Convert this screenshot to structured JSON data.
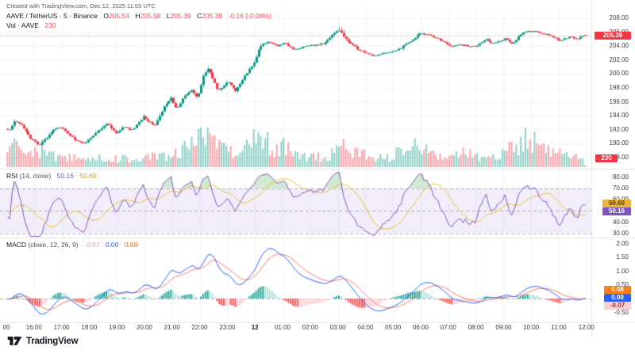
{
  "attribution": "Created with TradingView.com, Dec 12, 2025 11:55 UTC",
  "legend": {
    "symbol": "AAVE / TetherUS · 5 · Binance",
    "ohlc": [
      {
        "label": "O",
        "value": "205.54"
      },
      {
        "label": "H",
        "value": "205.58"
      },
      {
        "label": "L",
        "value": "205.39"
      },
      {
        "label": "C",
        "value": "205.39"
      }
    ],
    "change": "-0.16 (-0.08%)",
    "volume_label": "Vol · AAVE",
    "volume_value": "230"
  },
  "rsi": {
    "name": "RSI",
    "params": "(14, close)",
    "value": "50.16",
    "ma_value": "50.60"
  },
  "macd": {
    "name": "MACD",
    "params": "(close, 12, 26, 9)",
    "hist": "-0.07",
    "macd": "0.00",
    "signal": "0.08"
  },
  "badges": {
    "price": "205.39",
    "volume": "230",
    "rsi": "50.16",
    "rsi_ma": "50.60",
    "macd": "0.00",
    "signal": "0.08",
    "hist": "-0.07"
  },
  "logo": {
    "text": "TradingView"
  },
  "colors": {
    "up": "#089981",
    "down": "#f23645",
    "vol_up": "rgba(8,153,129,0.45)",
    "vol_down": "rgba(242,54,69,0.45)",
    "rsi_line": "#7e57c2",
    "rsi_ma": "#e8c231",
    "rsi_band": "rgba(126,87,194,0.10)",
    "rsi_ob_fill": "rgba(76,175,80,0.25)",
    "macd_line": "#2962ff",
    "signal_line": "#ff7766",
    "hist_grow_above": "#26a69a",
    "hist_fall_above": "#b2dfdb",
    "hist_fall_below": "#ff5252",
    "hist_grow_below": "#ffcdd2",
    "grid": "#f1f3f8",
    "separator": "#e0e3eb",
    "dashed": "rgba(120,123,134,0.55)",
    "price_line": "rgba(242,54,69,0.65)"
  },
  "chart_data": [
    {
      "type": "candlestick",
      "title": "AAVE / TetherUS · 5 · Binance",
      "interval_minutes": 5,
      "session_start": "15:00",
      "session_end": "12:00",
      "ylim": [
        188,
        208
      ],
      "y_ticks": [
        208,
        206,
        204,
        202,
        200,
        198,
        196,
        194,
        192,
        190,
        188
      ],
      "last_ohlc": {
        "o": 205.54,
        "h": 205.58,
        "l": 205.39,
        "c": 205.39
      },
      "price_path": [
        [
          0,
          192.1
        ],
        [
          0.17,
          191.9
        ],
        [
          0.33,
          193.2
        ],
        [
          0.58,
          192.6
        ],
        [
          0.92,
          190.7
        ],
        [
          1.2,
          189.7
        ],
        [
          1.45,
          190.6
        ],
        [
          1.75,
          192.0
        ],
        [
          2.0,
          192.3
        ],
        [
          2.3,
          191.2
        ],
        [
          2.6,
          190.3
        ],
        [
          2.85,
          189.9
        ],
        [
          3.2,
          191.3
        ],
        [
          3.7,
          192.8
        ],
        [
          4.0,
          191.5
        ],
        [
          4.3,
          192.3
        ],
        [
          4.6,
          191.9
        ],
        [
          5.0,
          193.8
        ],
        [
          5.25,
          192.9
        ],
        [
          5.4,
          192.5
        ],
        [
          5.8,
          195.6
        ],
        [
          6.0,
          196.5
        ],
        [
          6.2,
          194.9
        ],
        [
          6.5,
          196.9
        ],
        [
          6.75,
          197.7
        ],
        [
          6.95,
          196.4
        ],
        [
          7.15,
          199.5
        ],
        [
          7.35,
          200.7
        ],
        [
          7.7,
          197.5
        ],
        [
          8.05,
          198.9
        ],
        [
          8.35,
          197.5
        ],
        [
          8.7,
          199.9
        ],
        [
          9.0,
          201.5
        ],
        [
          9.2,
          203.9
        ],
        [
          9.5,
          204.6
        ],
        [
          9.8,
          203.9
        ],
        [
          10.1,
          204.4
        ],
        [
          10.45,
          203.4
        ],
        [
          10.9,
          203.9
        ],
        [
          11.5,
          204.3
        ],
        [
          12.05,
          206.2
        ],
        [
          12.15,
          205.9
        ],
        [
          12.4,
          204.6
        ],
        [
          12.8,
          203.4
        ],
        [
          13.3,
          202.6
        ],
        [
          13.85,
          203.0
        ],
        [
          14.3,
          203.6
        ],
        [
          14.8,
          205.1
        ],
        [
          15.05,
          205.8
        ],
        [
          15.45,
          205.3
        ],
        [
          15.85,
          204.6
        ],
        [
          16.15,
          203.9
        ],
        [
          16.5,
          204.1
        ],
        [
          17.0,
          203.9
        ],
        [
          17.4,
          204.9
        ],
        [
          17.65,
          204.3
        ],
        [
          18.1,
          205.0
        ],
        [
          18.35,
          204.2
        ],
        [
          18.75,
          206.0
        ],
        [
          19.1,
          206.1
        ],
        [
          19.4,
          205.8
        ],
        [
          19.75,
          205.4
        ],
        [
          20.1,
          204.7
        ],
        [
          20.45,
          205.3
        ],
        [
          20.7,
          204.9
        ],
        [
          20.92,
          205.4
        ]
      ],
      "x_axis": {
        "labels": [
          {
            "t": 0,
            "label": "00"
          },
          {
            "t": 1,
            "label": "16:00"
          },
          {
            "t": 2,
            "label": "17:00"
          },
          {
            "t": 3,
            "label": "18:00"
          },
          {
            "t": 4,
            "label": "19:00"
          },
          {
            "t": 5,
            "label": "20:00"
          },
          {
            "t": 6,
            "label": "21:00"
          },
          {
            "t": 7,
            "label": "22:00"
          },
          {
            "t": 8,
            "label": "23:00"
          },
          {
            "t": 9,
            "label": "12",
            "bold": true
          },
          {
            "t": 10,
            "label": "01:00"
          },
          {
            "t": 11,
            "label": "02:00"
          },
          {
            "t": 12,
            "label": "03:00"
          },
          {
            "t": 13,
            "label": "04:00"
          },
          {
            "t": 14,
            "label": "05:00"
          },
          {
            "t": 15,
            "label": "06:00"
          },
          {
            "t": 16,
            "label": "07:00"
          },
          {
            "t": 17,
            "label": "08:00"
          },
          {
            "t": 18,
            "label": "09:00"
          },
          {
            "t": 19,
            "label": "10:00"
          },
          {
            "t": 20,
            "label": "11:00"
          },
          {
            "t": 21,
            "label": "12:00"
          }
        ]
      }
    },
    {
      "type": "bar",
      "name": "Volume",
      "last_value": 230,
      "profile": [
        [
          0,
          22
        ],
        [
          0.3,
          26
        ],
        [
          0.7,
          12
        ],
        [
          1.1,
          20
        ],
        [
          1.3,
          24
        ],
        [
          1.8,
          10
        ],
        [
          2.3,
          12
        ],
        [
          2.9,
          10
        ],
        [
          3.5,
          12
        ],
        [
          4.1,
          11
        ],
        [
          4.7,
          9
        ],
        [
          5.1,
          16
        ],
        [
          5.6,
          12
        ],
        [
          6.1,
          18
        ],
        [
          6.6,
          26
        ],
        [
          7.0,
          40
        ],
        [
          7.2,
          46
        ],
        [
          7.6,
          26
        ],
        [
          8.1,
          18
        ],
        [
          8.6,
          24
        ],
        [
          9.0,
          34
        ],
        [
          9.2,
          40
        ],
        [
          9.6,
          22
        ],
        [
          10.0,
          30
        ],
        [
          10.3,
          18
        ],
        [
          10.9,
          12
        ],
        [
          11.5,
          13
        ],
        [
          12.0,
          26
        ],
        [
          12.2,
          30
        ],
        [
          12.6,
          18
        ],
        [
          13.2,
          14
        ],
        [
          13.8,
          12
        ],
        [
          14.2,
          22
        ],
        [
          14.7,
          34
        ],
        [
          15.1,
          30
        ],
        [
          15.6,
          18
        ],
        [
          16.0,
          14
        ],
        [
          16.6,
          20
        ],
        [
          17.1,
          12
        ],
        [
          17.7,
          14
        ],
        [
          18.2,
          22
        ],
        [
          18.8,
          38
        ],
        [
          19.2,
          30
        ],
        [
          19.7,
          16
        ],
        [
          20.1,
          18
        ],
        [
          20.6,
          12
        ],
        [
          20.92,
          6
        ]
      ]
    },
    {
      "type": "line",
      "name": "RSI",
      "length": 14,
      "source": "close",
      "ma_length": 14,
      "last": 50.16,
      "ma_last": 50.6,
      "levels": [
        70,
        50,
        30
      ],
      "ylim": [
        30,
        80
      ],
      "y_ticks": [
        80,
        70,
        60,
        40,
        30
      ]
    },
    {
      "type": "line",
      "name": "MACD",
      "fast": 12,
      "slow": 26,
      "signal_length": 9,
      "last_macd": 0.0,
      "last_signal": 0.08,
      "last_hist": -0.07,
      "y_ticks": [
        2.0,
        1.5,
        1.0,
        0.5,
        0.0,
        -0.5
      ]
    }
  ]
}
